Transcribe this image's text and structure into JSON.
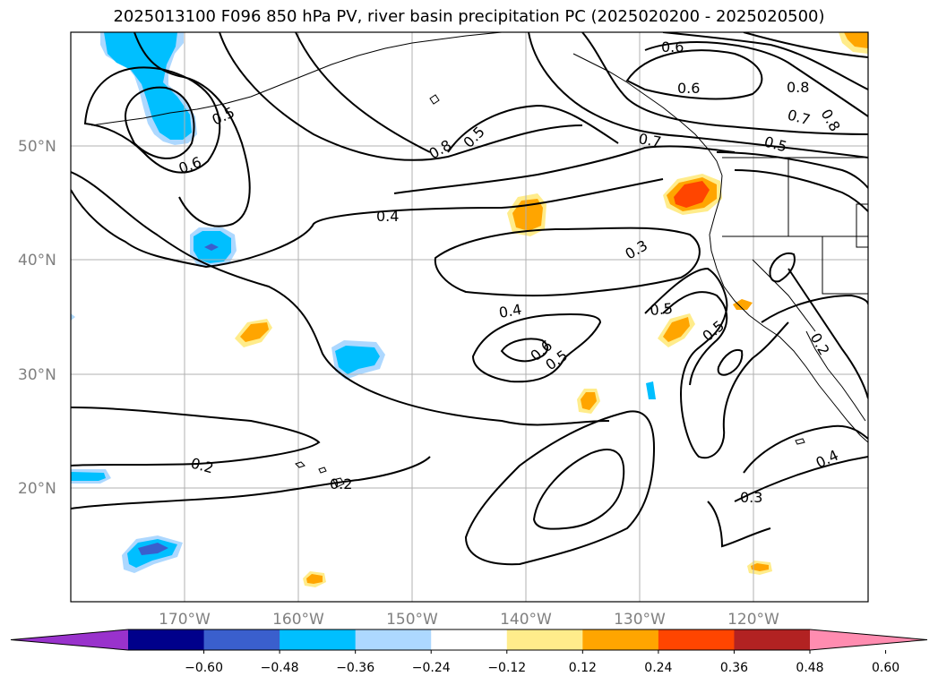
{
  "title": "2025013100 F096 850 hPa PV, river basin precipitation PC (2025020200 - 2025020500)",
  "lat_labels": [
    "50°N",
    "40°N",
    "30°N",
    "20°N"
  ],
  "lon_labels": [
    "170°W",
    "160°W",
    "150°W",
    "140°W",
    "130°W",
    "120°W"
  ],
  "contour_labels": [
    "0.6",
    "0.5",
    "0.8",
    "0.5",
    "0.6",
    "0.8",
    "0.6",
    "0.7",
    "0.8",
    "0.7",
    "0.5",
    "0.4",
    "0.3",
    "0.4",
    "0.5",
    "0.6",
    "0.5",
    "0.5",
    "0.2",
    "0.2",
    "0.2",
    "0.4",
    "0.3"
  ],
  "colorbar": {
    "tick_labels": [
      "−0.60",
      "−0.48",
      "−0.36",
      "−0.24",
      "−0.12",
      "0.12",
      "0.24",
      "0.36",
      "0.48",
      "0.60"
    ],
    "colors": [
      "#9932cc",
      "#00008b",
      "#3a5fcd",
      "#00bfff",
      "#add8ff",
      "#ffffff",
      "#ffec8b",
      "#ffa500",
      "#ff4500",
      "#b22222",
      "#ff8cb0"
    ]
  }
}
